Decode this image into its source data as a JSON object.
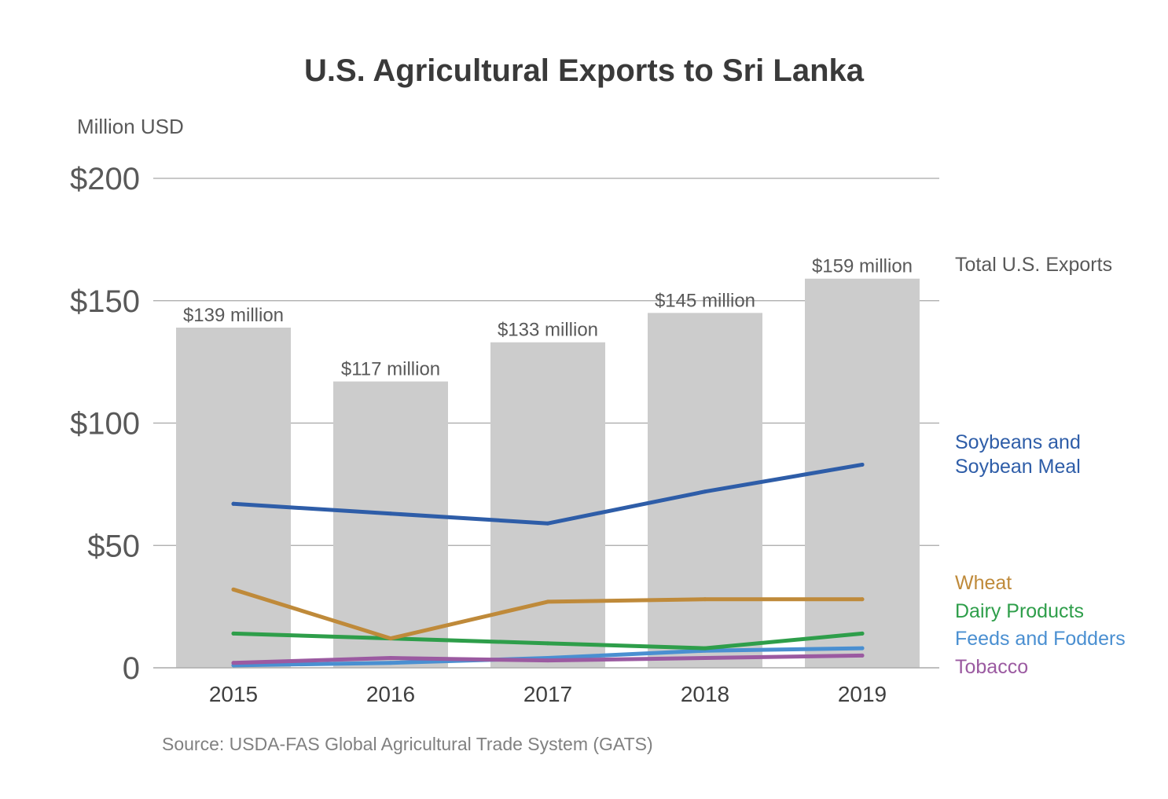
{
  "chart_data": {
    "type": "bar+line",
    "title": "U.S. Agricultural Exports to Sri Lanka",
    "ylabel": "Million USD",
    "source": "Source: USDA-FAS Global Agricultural Trade System (GATS)",
    "categories": [
      "2015",
      "2016",
      "2017",
      "2018",
      "2019"
    ],
    "ylim": [
      0,
      200
    ],
    "yticks": [
      {
        "value": 0,
        "label": "0"
      },
      {
        "value": 50,
        "label": "$50"
      },
      {
        "value": 100,
        "label": "$100"
      },
      {
        "value": 150,
        "label": "$150"
      },
      {
        "value": 200,
        "label": "$200"
      }
    ],
    "grid": true,
    "bars": {
      "name": "Total U.S. Exports",
      "values": [
        139,
        117,
        133,
        145,
        159
      ],
      "labels": [
        "$139 million",
        "$117 million",
        "$133 million",
        "$145 million",
        "$159 million"
      ],
      "color": "#cccccc"
    },
    "series": [
      {
        "name": "Soybeans and Soybean Meal",
        "name_lines": [
          "Soybeans and",
          "Soybean Meal"
        ],
        "values": [
          67,
          63,
          59,
          72,
          83
        ],
        "color": "#2e5da8"
      },
      {
        "name": "Wheat",
        "name_lines": [
          "Wheat"
        ],
        "values": [
          32,
          12,
          27,
          28,
          28
        ],
        "color": "#bf8a3a"
      },
      {
        "name": "Dairy Products",
        "name_lines": [
          "Dairy Products"
        ],
        "values": [
          14,
          12,
          10,
          8,
          14
        ],
        "color": "#2e9e4a"
      },
      {
        "name": "Feeds and Fodders",
        "name_lines": [
          "Feeds and Fodders"
        ],
        "values": [
          1,
          2,
          4,
          7,
          8
        ],
        "color": "#4a8fd1"
      },
      {
        "name": "Tobacco",
        "name_lines": [
          "Tobacco"
        ],
        "values": [
          2,
          4,
          3,
          4,
          5
        ],
        "color": "#9b5aa1"
      }
    ],
    "legend_placement": "right"
  }
}
